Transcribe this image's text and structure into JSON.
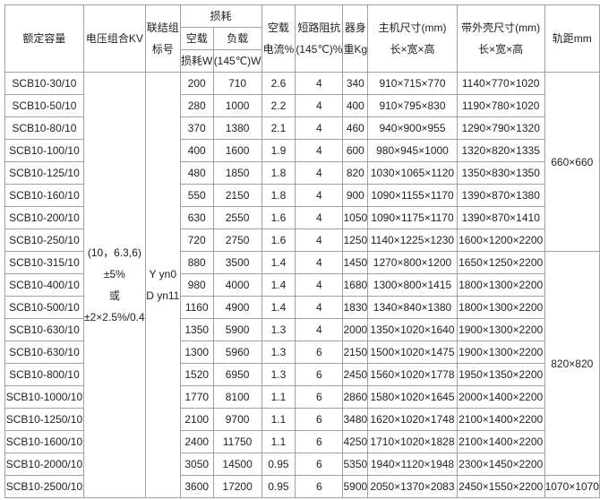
{
  "headers": {
    "capacity": "额定容量",
    "voltage": "电压组合KV",
    "connection": [
      "联结组",
      "标号"
    ],
    "loss": "损耗",
    "noload_loss": [
      "空载",
      "损耗W"
    ],
    "load_loss": [
      "负载",
      "(145℃)W"
    ],
    "noload_current": [
      "空载",
      "电流%"
    ],
    "impedance": [
      "短路阻抗",
      "(145℃)%"
    ],
    "weight": [
      "器身",
      "重Kg"
    ],
    "main_size": [
      "主机尺寸(mm)",
      "长×宽×高"
    ],
    "case_size": [
      "带外壳尺寸(mm)",
      "长×宽×高"
    ],
    "gauge": "轨距mm"
  },
  "voltage": [
    "(10，6.3,6)",
    "±5%",
    "或",
    "±2×2.5%/0.4"
  ],
  "connection": [
    "Y yn0",
    "D yn11"
  ],
  "gauges": [
    "660×660",
    "820×820",
    "1070×1070"
  ],
  "rows": [
    [
      "SCB10-30/10",
      "200",
      "710",
      "2.6",
      "4",
      "340",
      "910×715×770",
      "1140×770×1020"
    ],
    [
      "SCB10-50/10",
      "280",
      "1000",
      "2.2",
      "4",
      "400",
      "910×795×830",
      "1190×780×1020"
    ],
    [
      "SCB10-80/10",
      "370",
      "1380",
      "2.1",
      "4",
      "460",
      "940×900×955",
      "1290×790×1320"
    ],
    [
      "SCB10-100/10",
      "400",
      "1600",
      "1.9",
      "4",
      "600",
      "980×945×1000",
      "1320×820×1335"
    ],
    [
      "SCB10-125/10",
      "480",
      "1850",
      "1.8",
      "4",
      "820",
      "1030×1065×1120",
      "1350×830×1350"
    ],
    [
      "SCB10-160/10",
      "550",
      "2150",
      "1.8",
      "4",
      "900",
      "1090×1155×1170",
      "1390×870×1380"
    ],
    [
      "SCB10-200/10",
      "630",
      "2550",
      "1.6",
      "4",
      "1050",
      "1090×1175×1170",
      "1390×870×1410"
    ],
    [
      "SCB10-250/10",
      "720",
      "2750",
      "1.6",
      "4",
      "1250",
      "1140×1225×1230",
      "1600×1200×2200"
    ],
    [
      "SCB10-315/10",
      "880",
      "3500",
      "1.4",
      "4",
      "1450",
      "1270×800×1200",
      "1650×1250×2200"
    ],
    [
      "SCB10-400/10",
      "980",
      "4000",
      "1.4",
      "4",
      "1680",
      "1300×800×1415",
      "1800×1300×2200"
    ],
    [
      "SCB10-500/10",
      "1160",
      "4900",
      "1.4",
      "4",
      "1830",
      "1340×840×1380",
      "1800×1300×2200"
    ],
    [
      "SCB10-630/10",
      "1350",
      "5900",
      "1.3",
      "4",
      "2000",
      "1350×1020×1640",
      "1900×1300×2200"
    ],
    [
      "SCB10-630/10",
      "1300",
      "5960",
      "1.3",
      "6",
      "2150",
      "1500×1020×1475",
      "1900×1300×2200"
    ],
    [
      "SCB10-800/10",
      "1520",
      "6950",
      "1.3",
      "6",
      "2450",
      "1560×1020×1778",
      "1950×1350×2200"
    ],
    [
      "SCB10-1000/10",
      "1770",
      "8100",
      "1.1",
      "6",
      "2860",
      "1580×1020×1645",
      "2000×1400×2200"
    ],
    [
      "SCB10-1250/10",
      "2100",
      "9700",
      "1.1",
      "6",
      "3480",
      "1620×1020×1748",
      "2100×1400×2200"
    ],
    [
      "SCB10-1600/10",
      "2400",
      "11750",
      "1.1",
      "6",
      "4250",
      "1710×1020×1828",
      "2100×1400×2200"
    ],
    [
      "SCB10-2000/10",
      "3050",
      "14500",
      "0.95",
      "6",
      "5350",
      "1940×1120×1948",
      "2300×1450×2200"
    ],
    [
      "SCB10-2500/10",
      "3600",
      "17200",
      "0.95",
      "6",
      "5900",
      "2050×1370×2083",
      "2450×1550×2200"
    ]
  ]
}
